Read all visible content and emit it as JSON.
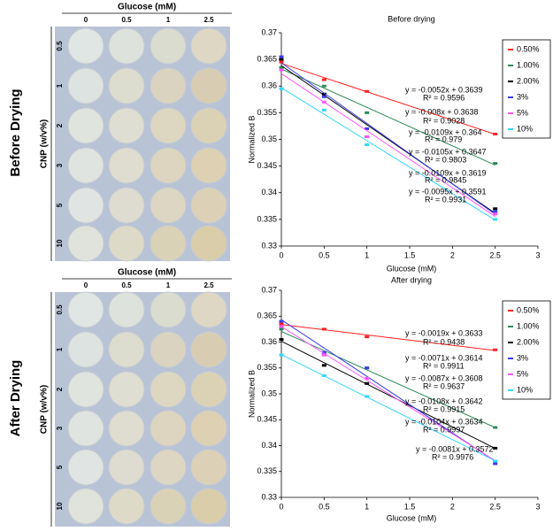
{
  "photos": [
    {
      "side_label": "Before Drying",
      "title": "Glucose (mM)",
      "columns": [
        "0",
        "0.5",
        "1",
        "2.5"
      ],
      "rows": [
        "0.5",
        "1",
        "2",
        "3",
        "5",
        "10"
      ],
      "axis_label": "CNP (w/v%)"
    },
    {
      "side_label": "After Drying",
      "title": "Glucose (mM)",
      "columns": [
        "0",
        "0.5",
        "1",
        "2.5"
      ],
      "rows": [
        "0.5",
        "1",
        "2",
        "3",
        "5",
        "10"
      ],
      "axis_label": "CNP (w/v%)"
    }
  ],
  "chart_data": [
    {
      "type": "line",
      "title": "Before drying",
      "x_label": "Glucose (mM)",
      "y_label": "Normalized B",
      "x": [
        0,
        0.5,
        1,
        2.5
      ],
      "xlim": [
        0,
        3
      ],
      "xticks": [
        0,
        0.5,
        1,
        1.5,
        2,
        2.5,
        3
      ],
      "ylim": [
        0.33,
        0.37
      ],
      "yticks": [
        0.33,
        0.335,
        0.34,
        0.345,
        0.35,
        0.355,
        0.36,
        0.365,
        0.37
      ],
      "series": [
        {
          "name": "0.50%",
          "color": "#ff2020",
          "values": [
            0.3645,
            0.3612,
            0.359,
            0.351
          ]
        },
        {
          "name": "1.00%",
          "color": "#2e8b57",
          "values": [
            0.3635,
            0.36,
            0.355,
            0.3455
          ]
        },
        {
          "name": "2.00%",
          "color": "#000000",
          "values": [
            0.365,
            0.3585,
            0.3505,
            0.337
          ]
        },
        {
          "name": "3%",
          "color": "#3a3aee",
          "values": [
            0.3655,
            0.358,
            0.352,
            0.3365
          ]
        },
        {
          "name": "5%",
          "color": "#ff55ff",
          "values": [
            0.363,
            0.357,
            0.3505,
            0.336
          ]
        },
        {
          "name": "10%",
          "color": "#33d6ff",
          "values": [
            0.3595,
            0.3555,
            0.349,
            0.335
          ]
        }
      ],
      "annotations": [
        "y = -0.0052x + 0.3639",
        "R² = 0.9596",
        "y = -0.008x + 0.3638",
        "R² = 0.9028",
        "y = -0.0109x + 0.364",
        "R² = 0.979",
        "y = -0.0105x + 0.3647",
        "R² = 0.9803",
        "y = -0.0109x + 0.3619",
        "R² = 0.9845",
        "y = -0.0095x + 0.3591",
        "R² = 0.9931"
      ]
    },
    {
      "type": "line",
      "title": "After drying",
      "x_label": "Glucose (mM)",
      "y_label": "Normalized B",
      "x": [
        0,
        0.5,
        1,
        2.5
      ],
      "xlim": [
        0,
        3
      ],
      "xticks": [
        0,
        0.5,
        1,
        1.5,
        2,
        2.5,
        3
      ],
      "ylim": [
        0.33,
        0.37
      ],
      "yticks": [
        0.33,
        0.335,
        0.34,
        0.345,
        0.35,
        0.355,
        0.36,
        0.365,
        0.37
      ],
      "series": [
        {
          "name": "0.50%",
          "color": "#ff2020",
          "values": [
            0.3635,
            0.3625,
            0.361,
            0.3585
          ]
        },
        {
          "name": "1.00%",
          "color": "#2e8b57",
          "values": [
            0.3625,
            0.3575,
            0.355,
            0.3435
          ]
        },
        {
          "name": "2.00%",
          "color": "#000000",
          "values": [
            0.3605,
            0.3555,
            0.352,
            0.3395
          ]
        },
        {
          "name": "3%",
          "color": "#3a3aee",
          "values": [
            0.364,
            0.358,
            0.355,
            0.3365
          ]
        },
        {
          "name": "5%",
          "color": "#ff55ff",
          "values": [
            0.363,
            0.3575,
            0.353,
            0.337
          ]
        },
        {
          "name": "10%",
          "color": "#33d6ff",
          "values": [
            0.3575,
            0.3535,
            0.3495,
            0.337
          ]
        }
      ],
      "annotations": [
        "y = -0.0019x + 0.3633",
        "R² = 0.9438",
        "y = -0.0071x + 0.3614",
        "R² = 0.9911",
        "y = -0.0087x + 0.3608",
        "R² = 0.9637",
        "y = -0.0108x + 0.3642",
        "R² = 0.9915",
        "y = -0.0104x + 0.3634",
        "R² = 0.9997",
        "y = -0.0081x + 0.3572",
        "R² = 0.9976"
      ]
    }
  ]
}
